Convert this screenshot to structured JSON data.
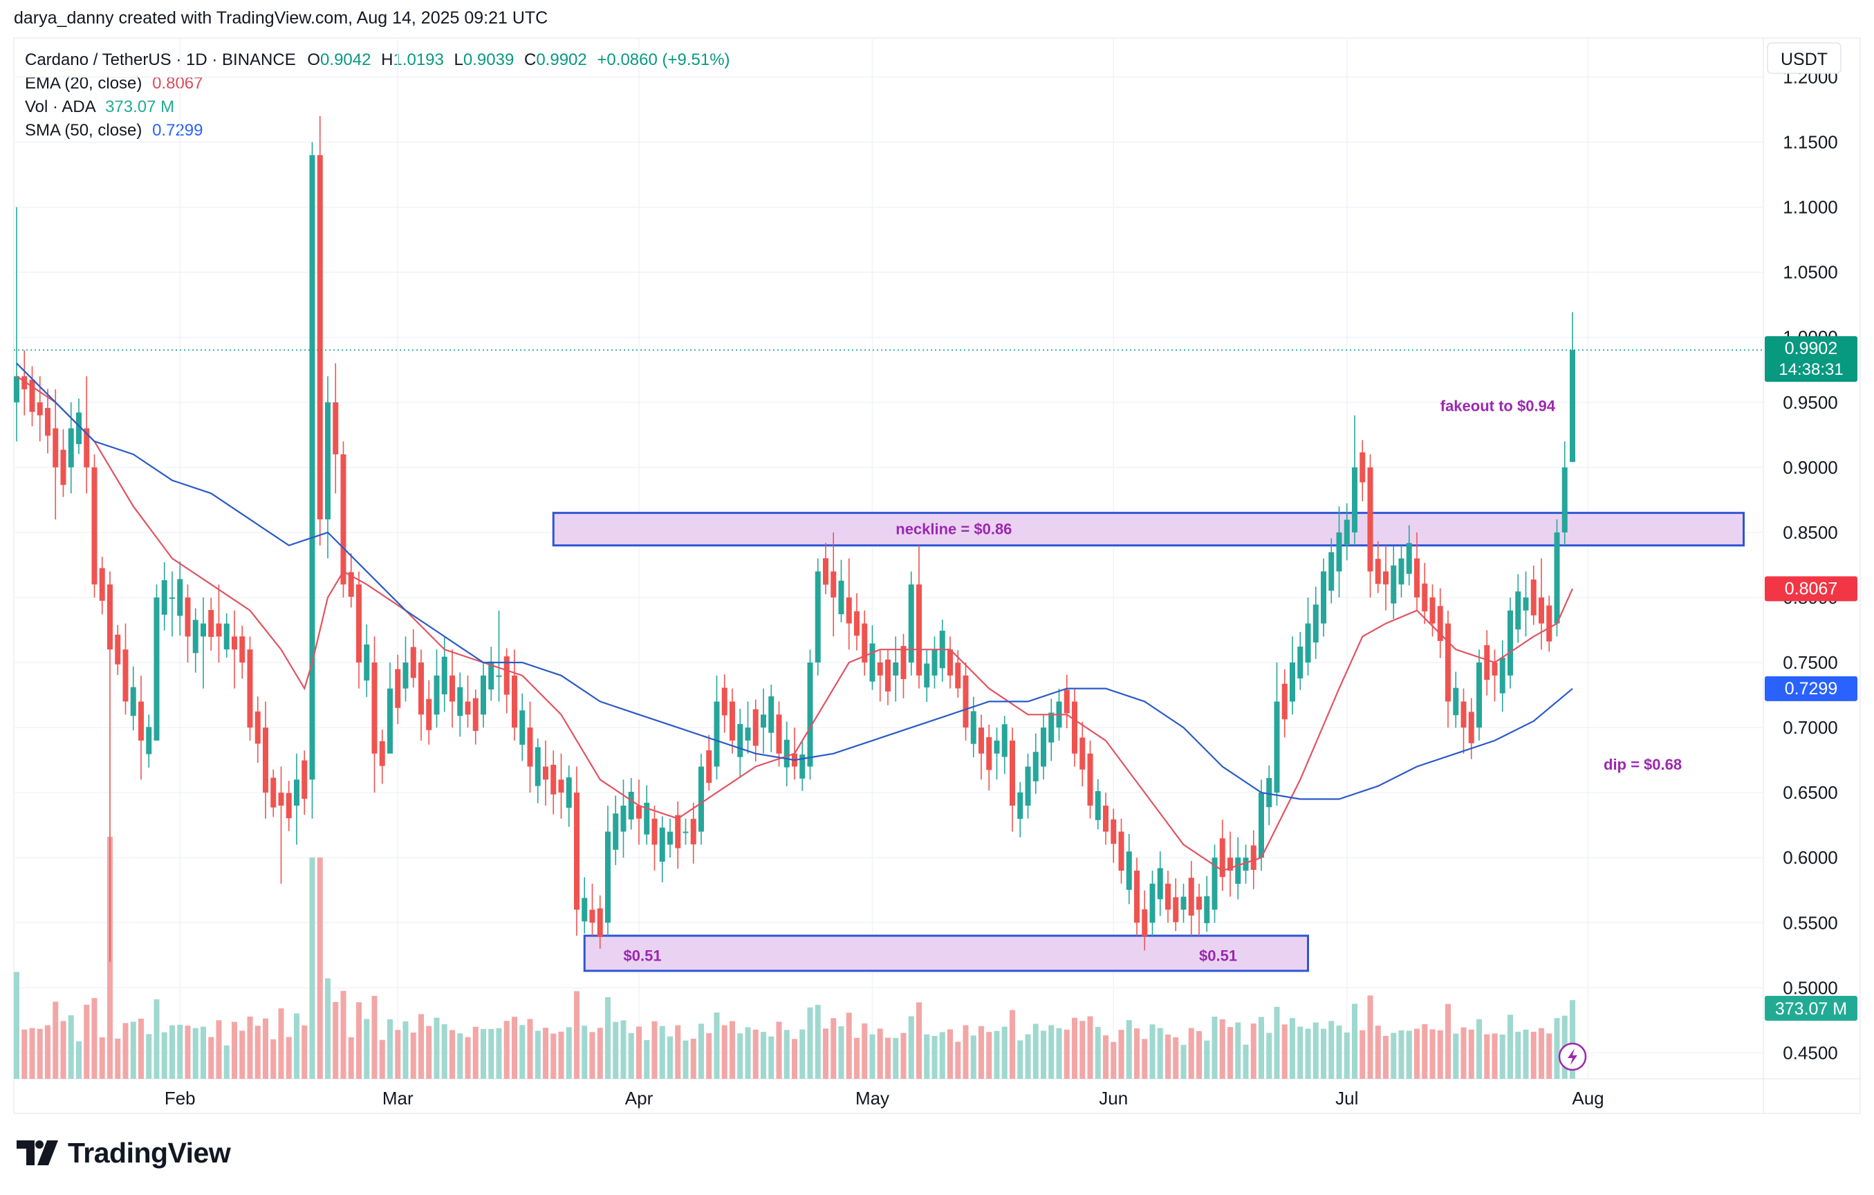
{
  "header": {
    "credit": "darya_danny created with TradingView.com, Aug 14, 2025 09:21 UTC"
  },
  "legend": {
    "symbol": "Cardano / TetherUS · 1D · BINANCE",
    "o_label": "O",
    "o_value": "0.9042",
    "h_label": "H",
    "h_value": "1.0193",
    "l_label": "L",
    "l_value": "0.9039",
    "c_label": "C",
    "c_value": "0.9902",
    "change": "+0.0860 (+9.51%)",
    "ema_label": "EMA (20, close)",
    "ema_value": "0.8067",
    "vol_label": "Vol · ADA",
    "vol_value": "373.07 M",
    "sma_label": "SMA (50, close)",
    "sma_value": "0.7299"
  },
  "footer": {
    "brand": "TradingView"
  },
  "colors": {
    "up": "#26a69a",
    "down": "#ef5350",
    "ema": "#e05360",
    "sma": "#2a5ac8",
    "zone_fill": "#ead3f2",
    "zone_border": "#2d55d6",
    "annotation": "#9c27b0"
  },
  "chart_data": {
    "type": "candlestick",
    "interval": "1D",
    "ylim": [
      0.43,
      1.23
    ],
    "y_ticks": [
      "1.2000",
      "1.1500",
      "1.1000",
      "1.0500",
      "1.0000",
      "0.9500",
      "0.9000",
      "0.8500",
      "0.8000",
      "0.7500",
      "0.7000",
      "0.6500",
      "0.6000",
      "0.5500",
      "0.5000",
      "0.4500"
    ],
    "y_axis_currency": "USDT",
    "x_ticks": [
      {
        "label": "Feb",
        "day": 21
      },
      {
        "label": "Mar",
        "day": 49
      },
      {
        "label": "Apr",
        "day": 80
      },
      {
        "label": "May",
        "day": 110
      },
      {
        "label": "Jun",
        "day": 141
      },
      {
        "label": "Jul",
        "day": 171
      },
      {
        "label": "Aug",
        "day": 202
      }
    ],
    "current_price": {
      "value": 0.9902,
      "label": "0.9902",
      "countdown": "14:38:31"
    },
    "ema_tag": {
      "value": 0.8067,
      "label": "0.8067"
    },
    "sma_tag": {
      "value": 0.7299,
      "label": "0.7299"
    },
    "volume_tag": {
      "label": "373.07 M"
    },
    "zones": [
      {
        "name": "neckline",
        "from_day": 69,
        "to_day": 222,
        "low": 0.84,
        "high": 0.865
      },
      {
        "name": "support",
        "from_day": 73,
        "to_day": 166,
        "low": 0.513,
        "high": 0.54
      }
    ],
    "annotations": [
      {
        "text": "neckline = $0.86",
        "day": 113,
        "price": 0.8485
      },
      {
        "text": "$0.51",
        "day": 78,
        "price": 0.5205
      },
      {
        "text": "$0.51",
        "day": 152,
        "price": 0.5205
      },
      {
        "text": "fakeout to $0.94",
        "day": 183,
        "price": 0.9433
      },
      {
        "text": "dip = $0.68",
        "day": 204,
        "price": 0.6675
      }
    ],
    "ohlc_keypoints": [
      [
        0,
        0.95,
        1.1,
        0.92,
        0.97
      ],
      [
        1,
        0.97,
        0.99,
        0.94,
        0.96
      ],
      [
        3,
        0.95,
        0.97,
        0.92,
        0.94
      ],
      [
        5,
        0.93,
        0.96,
        0.86,
        0.9
      ],
      [
        7,
        0.9,
        0.95,
        0.88,
        0.93
      ],
      [
        9,
        0.93,
        0.97,
        0.88,
        0.9
      ],
      [
        10,
        0.9,
        0.91,
        0.8,
        0.81
      ],
      [
        12,
        0.81,
        0.82,
        0.52,
        0.76
      ],
      [
        14,
        0.76,
        0.78,
        0.71,
        0.72
      ],
      [
        16,
        0.72,
        0.74,
        0.66,
        0.69
      ],
      [
        18,
        0.69,
        0.81,
        0.7,
        0.8
      ],
      [
        20,
        0.8,
        0.82,
        0.77,
        0.8
      ],
      [
        22,
        0.8,
        0.81,
        0.75,
        0.77
      ],
      [
        24,
        0.77,
        0.8,
        0.73,
        0.78
      ],
      [
        26,
        0.78,
        0.81,
        0.75,
        0.77
      ],
      [
        28,
        0.77,
        0.79,
        0.73,
        0.76
      ],
      [
        30,
        0.76,
        0.77,
        0.69,
        0.7
      ],
      [
        32,
        0.7,
        0.72,
        0.63,
        0.65
      ],
      [
        34,
        0.65,
        0.67,
        0.58,
        0.64
      ],
      [
        36,
        0.64,
        0.68,
        0.61,
        0.66
      ],
      [
        38,
        0.66,
        1.15,
        0.63,
        1.14
      ],
      [
        39,
        1.14,
        1.17,
        0.84,
        0.86
      ],
      [
        40,
        0.86,
        0.97,
        0.83,
        0.95
      ],
      [
        41,
        0.95,
        0.98,
        0.88,
        0.91
      ],
      [
        42,
        0.91,
        0.92,
        0.8,
        0.81
      ],
      [
        44,
        0.81,
        0.82,
        0.73,
        0.75
      ],
      [
        46,
        0.75,
        0.77,
        0.65,
        0.68
      ],
      [
        48,
        0.68,
        0.75,
        0.69,
        0.73
      ],
      [
        50,
        0.73,
        0.77,
        0.72,
        0.75
      ],
      [
        52,
        0.75,
        0.76,
        0.69,
        0.71
      ],
      [
        54,
        0.71,
        0.76,
        0.7,
        0.74
      ],
      [
        56,
        0.74,
        0.76,
        0.7,
        0.72
      ],
      [
        58,
        0.72,
        0.74,
        0.7,
        0.71
      ],
      [
        60,
        0.71,
        0.75,
        0.7,
        0.74
      ],
      [
        62,
        0.74,
        0.79,
        0.72,
        0.74
      ],
      [
        64,
        0.74,
        0.76,
        0.69,
        0.7
      ],
      [
        66,
        0.7,
        0.72,
        0.65,
        0.67
      ],
      [
        68,
        0.67,
        0.69,
        0.64,
        0.66
      ],
      [
        70,
        0.66,
        0.68,
        0.63,
        0.65
      ],
      [
        72,
        0.65,
        0.67,
        0.54,
        0.56
      ],
      [
        74,
        0.56,
        0.58,
        0.54,
        0.55
      ],
      [
        76,
        0.55,
        0.64,
        0.54,
        0.62
      ],
      [
        78,
        0.62,
        0.66,
        0.6,
        0.64
      ],
      [
        80,
        0.64,
        0.66,
        0.61,
        0.63
      ],
      [
        82,
        0.63,
        0.64,
        0.59,
        0.61
      ],
      [
        84,
        0.61,
        0.63,
        0.6,
        0.62
      ],
      [
        86,
        0.62,
        0.63,
        0.61,
        0.62
      ],
      [
        88,
        0.62,
        0.68,
        0.61,
        0.67
      ],
      [
        90,
        0.67,
        0.74,
        0.66,
        0.72
      ],
      [
        92,
        0.72,
        0.73,
        0.68,
        0.69
      ],
      [
        94,
        0.69,
        0.72,
        0.68,
        0.7
      ],
      [
        96,
        0.7,
        0.73,
        0.68,
        0.71
      ],
      [
        98,
        0.71,
        0.72,
        0.67,
        0.68
      ],
      [
        100,
        0.68,
        0.7,
        0.66,
        0.67
      ],
      [
        102,
        0.67,
        0.76,
        0.66,
        0.75
      ],
      [
        103,
        0.75,
        0.83,
        0.74,
        0.82
      ],
      [
        105,
        0.82,
        0.85,
        0.77,
        0.8
      ],
      [
        107,
        0.8,
        0.83,
        0.76,
        0.78
      ],
      [
        109,
        0.78,
        0.79,
        0.74,
        0.75
      ],
      [
        111,
        0.75,
        0.76,
        0.72,
        0.74
      ],
      [
        113,
        0.74,
        0.77,
        0.72,
        0.75
      ],
      [
        115,
        0.75,
        0.82,
        0.74,
        0.81
      ],
      [
        116,
        0.81,
        0.84,
        0.73,
        0.74
      ],
      [
        118,
        0.74,
        0.77,
        0.73,
        0.76
      ],
      [
        120,
        0.76,
        0.77,
        0.73,
        0.74
      ],
      [
        122,
        0.74,
        0.75,
        0.69,
        0.7
      ],
      [
        124,
        0.7,
        0.71,
        0.66,
        0.68
      ],
      [
        126,
        0.68,
        0.7,
        0.66,
        0.69
      ],
      [
        128,
        0.69,
        0.7,
        0.62,
        0.64
      ],
      [
        130,
        0.64,
        0.68,
        0.63,
        0.67
      ],
      [
        132,
        0.67,
        0.71,
        0.66,
        0.7
      ],
      [
        134,
        0.7,
        0.73,
        0.69,
        0.72
      ],
      [
        136,
        0.72,
        0.73,
        0.67,
        0.68
      ],
      [
        138,
        0.68,
        0.69,
        0.63,
        0.64
      ],
      [
        140,
        0.64,
        0.65,
        0.61,
        0.62
      ],
      [
        142,
        0.62,
        0.63,
        0.58,
        0.59
      ],
      [
        144,
        0.59,
        0.6,
        0.54,
        0.55
      ],
      [
        146,
        0.55,
        0.59,
        0.54,
        0.58
      ],
      [
        148,
        0.58,
        0.59,
        0.55,
        0.56
      ],
      [
        150,
        0.56,
        0.58,
        0.55,
        0.57
      ],
      [
        152,
        0.57,
        0.58,
        0.54,
        0.56
      ],
      [
        154,
        0.56,
        0.61,
        0.55,
        0.6
      ],
      [
        156,
        0.6,
        0.62,
        0.57,
        0.59
      ],
      [
        158,
        0.59,
        0.61,
        0.58,
        0.6
      ],
      [
        160,
        0.6,
        0.66,
        0.59,
        0.65
      ],
      [
        162,
        0.65,
        0.75,
        0.64,
        0.72
      ],
      [
        164,
        0.72,
        0.77,
        0.71,
        0.75
      ],
      [
        166,
        0.75,
        0.8,
        0.74,
        0.78
      ],
      [
        168,
        0.78,
        0.83,
        0.77,
        0.82
      ],
      [
        170,
        0.82,
        0.87,
        0.8,
        0.85
      ],
      [
        172,
        0.85,
        0.94,
        0.84,
        0.9
      ],
      [
        174,
        0.9,
        0.91,
        0.8,
        0.82
      ],
      [
        176,
        0.82,
        0.84,
        0.79,
        0.81
      ],
      [
        178,
        0.81,
        0.84,
        0.8,
        0.83
      ],
      [
        180,
        0.83,
        0.85,
        0.79,
        0.8
      ],
      [
        182,
        0.8,
        0.81,
        0.77,
        0.78
      ],
      [
        184,
        0.78,
        0.79,
        0.7,
        0.72
      ],
      [
        186,
        0.72,
        0.73,
        0.68,
        0.7
      ],
      [
        188,
        0.7,
        0.76,
        0.69,
        0.75
      ],
      [
        190,
        0.75,
        0.76,
        0.72,
        0.74
      ],
      [
        192,
        0.74,
        0.8,
        0.73,
        0.79
      ],
      [
        194,
        0.79,
        0.82,
        0.77,
        0.8
      ],
      [
        196,
        0.8,
        0.83,
        0.76,
        0.78
      ],
      [
        198,
        0.78,
        0.86,
        0.77,
        0.85
      ],
      [
        199,
        0.85,
        0.92,
        0.84,
        0.9
      ],
      [
        200,
        0.9042,
        1.0193,
        0.9039,
        0.9902
      ]
    ],
    "ema20_keypoints": [
      [
        0,
        0.97
      ],
      [
        5,
        0.95
      ],
      [
        10,
        0.92
      ],
      [
        15,
        0.87
      ],
      [
        20,
        0.83
      ],
      [
        25,
        0.81
      ],
      [
        30,
        0.79
      ],
      [
        34,
        0.76
      ],
      [
        37,
        0.73
      ],
      [
        38,
        0.75
      ],
      [
        40,
        0.8
      ],
      [
        42,
        0.82
      ],
      [
        45,
        0.81
      ],
      [
        50,
        0.79
      ],
      [
        55,
        0.76
      ],
      [
        60,
        0.75
      ],
      [
        65,
        0.74
      ],
      [
        70,
        0.71
      ],
      [
        75,
        0.66
      ],
      [
        80,
        0.64
      ],
      [
        85,
        0.63
      ],
      [
        90,
        0.65
      ],
      [
        95,
        0.67
      ],
      [
        100,
        0.68
      ],
      [
        103,
        0.71
      ],
      [
        107,
        0.75
      ],
      [
        111,
        0.76
      ],
      [
        115,
        0.76
      ],
      [
        120,
        0.76
      ],
      [
        125,
        0.73
      ],
      [
        130,
        0.71
      ],
      [
        135,
        0.71
      ],
      [
        140,
        0.69
      ],
      [
        145,
        0.65
      ],
      [
        150,
        0.61
      ],
      [
        155,
        0.59
      ],
      [
        160,
        0.6
      ],
      [
        165,
        0.66
      ],
      [
        170,
        0.73
      ],
      [
        173,
        0.77
      ],
      [
        176,
        0.78
      ],
      [
        180,
        0.79
      ],
      [
        185,
        0.76
      ],
      [
        190,
        0.75
      ],
      [
        195,
        0.77
      ],
      [
        198,
        0.78
      ],
      [
        200,
        0.8067
      ]
    ],
    "sma50_keypoints": [
      [
        0,
        0.98
      ],
      [
        5,
        0.95
      ],
      [
        10,
        0.92
      ],
      [
        15,
        0.91
      ],
      [
        20,
        0.89
      ],
      [
        25,
        0.88
      ],
      [
        30,
        0.86
      ],
      [
        35,
        0.84
      ],
      [
        40,
        0.85
      ],
      [
        45,
        0.82
      ],
      [
        50,
        0.79
      ],
      [
        55,
        0.77
      ],
      [
        60,
        0.75
      ],
      [
        65,
        0.75
      ],
      [
        70,
        0.74
      ],
      [
        75,
        0.72
      ],
      [
        80,
        0.71
      ],
      [
        85,
        0.7
      ],
      [
        90,
        0.69
      ],
      [
        95,
        0.68
      ],
      [
        100,
        0.675
      ],
      [
        105,
        0.68
      ],
      [
        110,
        0.69
      ],
      [
        115,
        0.7
      ],
      [
        120,
        0.71
      ],
      [
        125,
        0.72
      ],
      [
        130,
        0.72
      ],
      [
        135,
        0.73
      ],
      [
        140,
        0.73
      ],
      [
        145,
        0.72
      ],
      [
        150,
        0.7
      ],
      [
        155,
        0.67
      ],
      [
        160,
        0.65
      ],
      [
        165,
        0.645
      ],
      [
        170,
        0.645
      ],
      [
        175,
        0.655
      ],
      [
        180,
        0.67
      ],
      [
        185,
        0.68
      ],
      [
        190,
        0.69
      ],
      [
        195,
        0.705
      ],
      [
        200,
        0.7299
      ]
    ]
  }
}
